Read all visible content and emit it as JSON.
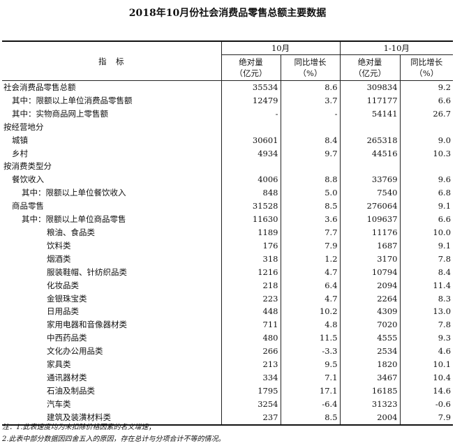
{
  "title": "2018年10月份社会消费品零售总额主要数据",
  "header": {
    "indicator": "指　标",
    "period_oct": "10月",
    "period_ytd": "1-10月",
    "abs_line1": "绝对量",
    "abs_line2": "（亿元）",
    "growth_line1": "同比增长",
    "growth_line2": "（%）"
  },
  "rows": [
    {
      "name": "社会消费品零售总额",
      "level": 0,
      "oct_abs": "35534",
      "oct_growth": "8.6",
      "ytd_abs": "309834",
      "ytd_growth": "9.2"
    },
    {
      "name": "其中：限额以上单位消费品零售额",
      "level": 1,
      "oct_abs": "12479",
      "oct_growth": "3.7",
      "ytd_abs": "117177",
      "ytd_growth": "6.6"
    },
    {
      "name": "其中：实物商品网上零售额",
      "level": 1,
      "oct_abs": "-",
      "oct_growth": "-",
      "ytd_abs": "54141",
      "ytd_growth": "26.7"
    },
    {
      "name": "按经营地分",
      "level": 0,
      "oct_abs": "",
      "oct_growth": "",
      "ytd_abs": "",
      "ytd_growth": ""
    },
    {
      "name": "城镇",
      "level": 1,
      "oct_abs": "30601",
      "oct_growth": "8.4",
      "ytd_abs": "265318",
      "ytd_growth": "9.0"
    },
    {
      "name": "乡村",
      "level": 1,
      "oct_abs": "4934",
      "oct_growth": "9.7",
      "ytd_abs": "44516",
      "ytd_growth": "10.3"
    },
    {
      "name": "按消费类型分",
      "level": 0,
      "oct_abs": "",
      "oct_growth": "",
      "ytd_abs": "",
      "ytd_growth": ""
    },
    {
      "name": "餐饮收入",
      "level": 1,
      "oct_abs": "4006",
      "oct_growth": "8.8",
      "ytd_abs": "33769",
      "ytd_growth": "9.6"
    },
    {
      "name": "其中：限额以上单位餐饮收入",
      "level": 2,
      "oct_abs": "848",
      "oct_growth": "5.0",
      "ytd_abs": "7540",
      "ytd_growth": "6.8"
    },
    {
      "name": "商品零售",
      "level": 1,
      "oct_abs": "31528",
      "oct_growth": "8.5",
      "ytd_abs": "276064",
      "ytd_growth": "9.1"
    },
    {
      "name": "其中：限额以上单位商品零售",
      "level": 2,
      "oct_abs": "11630",
      "oct_growth": "3.6",
      "ytd_abs": "109637",
      "ytd_growth": "6.6"
    },
    {
      "name": "粮油、食品类",
      "level": 3,
      "oct_abs": "1189",
      "oct_growth": "7.7",
      "ytd_abs": "11176",
      "ytd_growth": "10.0"
    },
    {
      "name": "饮料类",
      "level": 3,
      "oct_abs": "176",
      "oct_growth": "7.9",
      "ytd_abs": "1687",
      "ytd_growth": "9.1"
    },
    {
      "name": "烟酒类",
      "level": 3,
      "oct_abs": "318",
      "oct_growth": "1.2",
      "ytd_abs": "3170",
      "ytd_growth": "7.8"
    },
    {
      "name": "服装鞋帽、针纺织品类",
      "level": 3,
      "oct_abs": "1216",
      "oct_growth": "4.7",
      "ytd_abs": "10794",
      "ytd_growth": "8.4"
    },
    {
      "name": "化妆品类",
      "level": 3,
      "oct_abs": "218",
      "oct_growth": "6.4",
      "ytd_abs": "2094",
      "ytd_growth": "11.4"
    },
    {
      "name": "金银珠宝类",
      "level": 3,
      "oct_abs": "223",
      "oct_growth": "4.7",
      "ytd_abs": "2264",
      "ytd_growth": "8.3"
    },
    {
      "name": "日用品类",
      "level": 3,
      "oct_abs": "448",
      "oct_growth": "10.2",
      "ytd_abs": "4309",
      "ytd_growth": "13.0"
    },
    {
      "name": "家用电器和音像器材类",
      "level": 3,
      "oct_abs": "711",
      "oct_growth": "4.8",
      "ytd_abs": "7020",
      "ytd_growth": "7.8"
    },
    {
      "name": "中西药品类",
      "level": 3,
      "oct_abs": "480",
      "oct_growth": "11.5",
      "ytd_abs": "4555",
      "ytd_growth": "9.3"
    },
    {
      "name": "文化办公用品类",
      "level": 3,
      "oct_abs": "266",
      "oct_growth": "-3.3",
      "ytd_abs": "2534",
      "ytd_growth": "4.6"
    },
    {
      "name": "家具类",
      "level": 3,
      "oct_abs": "213",
      "oct_growth": "9.5",
      "ytd_abs": "1820",
      "ytd_growth": "10.1"
    },
    {
      "name": "通讯器材类",
      "level": 3,
      "oct_abs": "334",
      "oct_growth": "7.1",
      "ytd_abs": "3467",
      "ytd_growth": "10.4"
    },
    {
      "name": "石油及制品类",
      "level": 3,
      "oct_abs": "1795",
      "oct_growth": "17.1",
      "ytd_abs": "16185",
      "ytd_growth": "14.6"
    },
    {
      "name": "汽车类",
      "level": 3,
      "oct_abs": "3254",
      "oct_growth": "-6.4",
      "ytd_abs": "31323",
      "ytd_growth": "-0.6"
    },
    {
      "name": "建筑及装潢材料类",
      "level": 3,
      "oct_abs": "237",
      "oct_growth": "8.5",
      "ytd_abs": "2004",
      "ytd_growth": "7.9"
    }
  ],
  "notes": [
    "注：1.此表速度均为未扣除价格因素的名义增速；",
    "2.此表中部分数据因四舍五入的原因，存在总计与分项合计不等的情况。"
  ]
}
